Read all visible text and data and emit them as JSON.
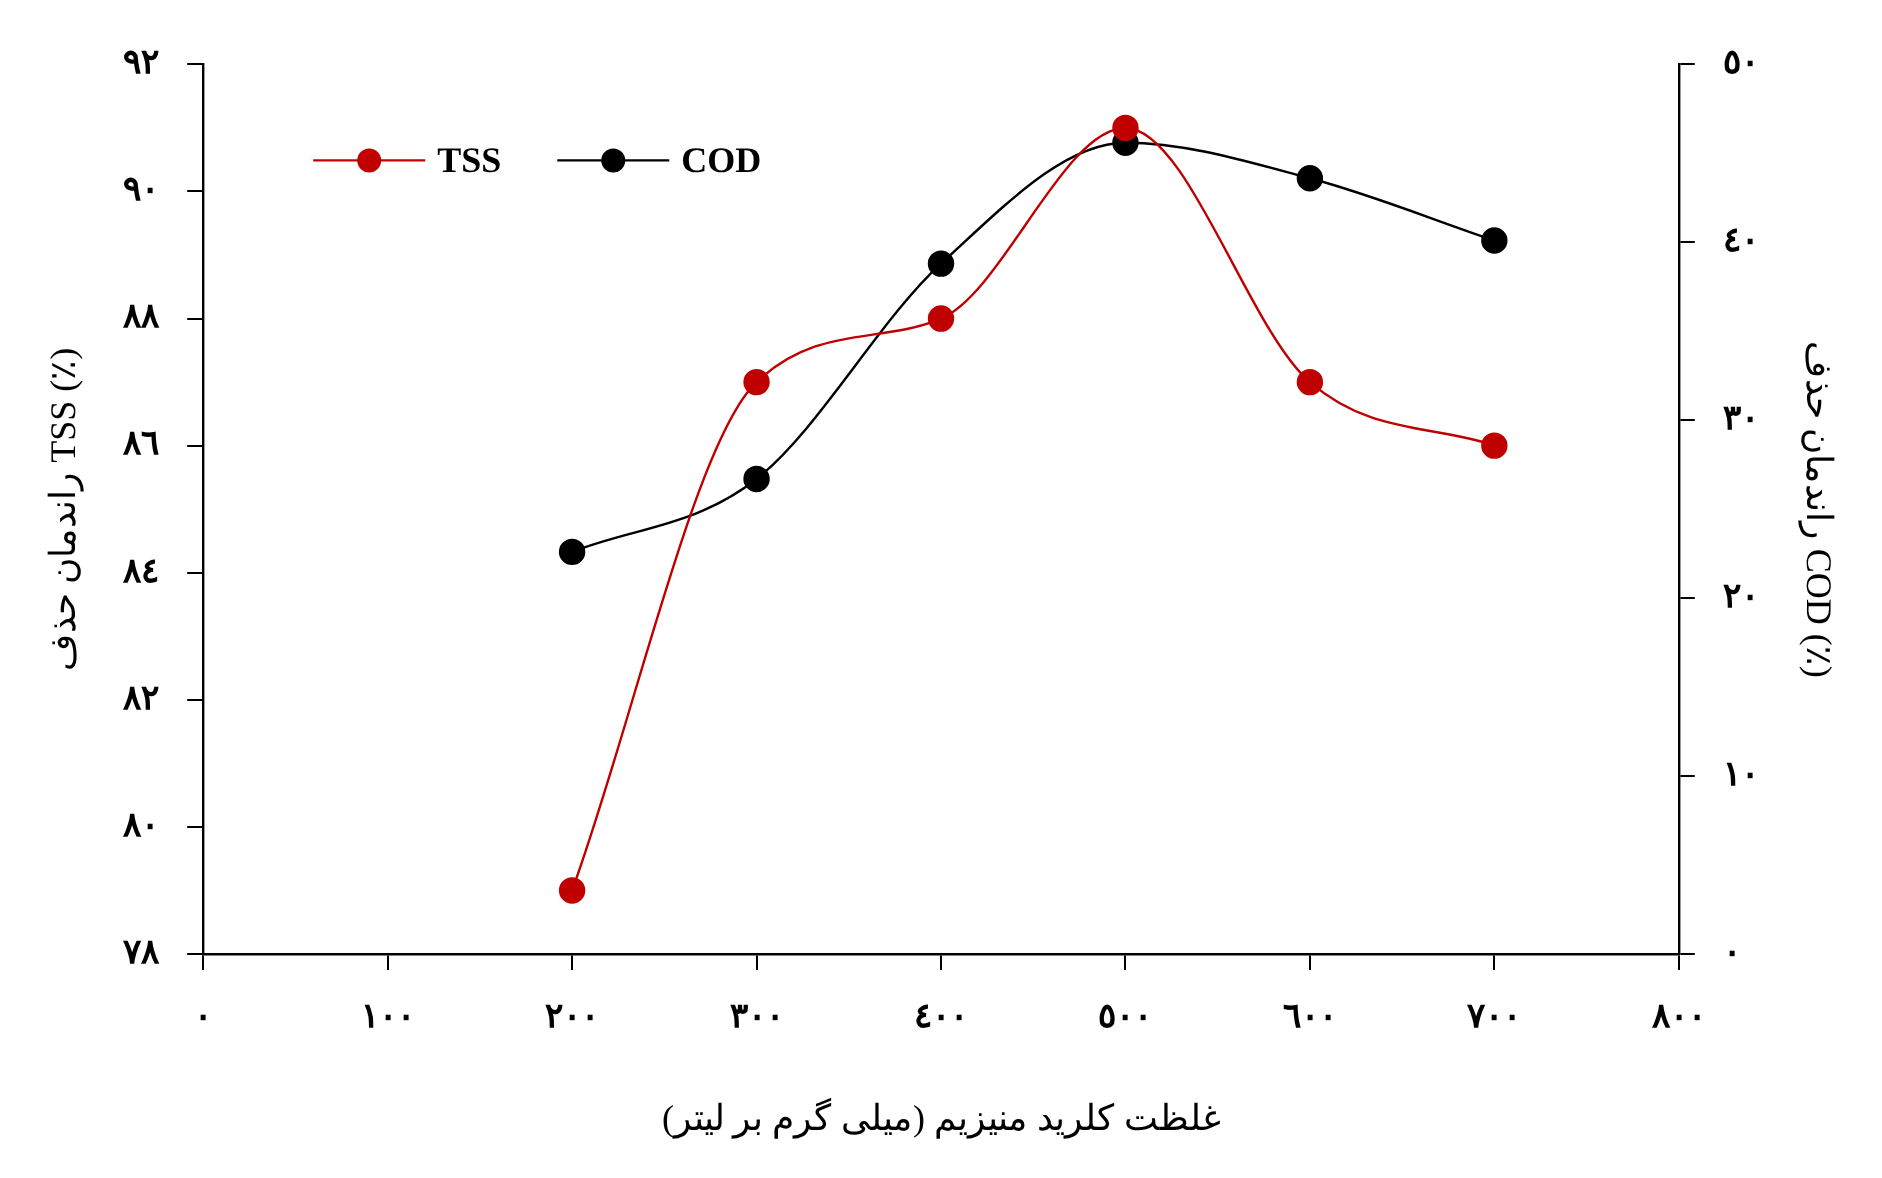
{
  "chart_data": {
    "type": "line",
    "xlabel": "غلظت کلرید منیزیم (میلی گرم بر لیتر)",
    "ylabel": "راندمان حذف TSS (٪)",
    "y2label": "راندمان حذف COD (٪)",
    "x": [
      200,
      300,
      400,
      500,
      600,
      700
    ],
    "series": [
      {
        "name": "TSS",
        "color": "#c00000",
        "values": [
          79,
          87,
          88,
          91,
          87,
          86
        ]
      },
      {
        "name": "COD",
        "color": "#000000",
        "axis": "y2",
        "values": [
          22.6,
          26.7,
          38.8,
          45.6,
          43.6,
          40.1
        ]
      }
    ],
    "xlim": [
      0,
      800
    ],
    "xticks": [
      {
        "value": 0,
        "label": "٠"
      },
      {
        "value": 100,
        "label": "١٠٠"
      },
      {
        "value": 200,
        "label": "٢٠٠"
      },
      {
        "value": 300,
        "label": "٣٠٠"
      },
      {
        "value": 400,
        "label": "٤٠٠"
      },
      {
        "value": 500,
        "label": "٥٠٠"
      },
      {
        "value": 600,
        "label": "٦٠٠"
      },
      {
        "value": 700,
        "label": "٧٠٠"
      },
      {
        "value": 800,
        "label": "٨٠٠"
      }
    ],
    "ylim": [
      78,
      92
    ],
    "yticks": [
      {
        "value": 78,
        "label": "٧٨"
      },
      {
        "value": 80,
        "label": "٨٠"
      },
      {
        "value": 82,
        "label": "٨٢"
      },
      {
        "value": 84,
        "label": "٨٤"
      },
      {
        "value": 86,
        "label": "٨٦"
      },
      {
        "value": 88,
        "label": "٨٨"
      },
      {
        "value": 90,
        "label": "٩٠"
      },
      {
        "value": 92,
        "label": "٩٢"
      }
    ],
    "y2lim": [
      0,
      50
    ],
    "y2ticks": [
      {
        "value": 0,
        "label": "٠"
      },
      {
        "value": 10,
        "label": "١٠"
      },
      {
        "value": 20,
        "label": "٢٠"
      },
      {
        "value": 30,
        "label": "٣٠"
      },
      {
        "value": 40,
        "label": "٤٠"
      },
      {
        "value": 50,
        "label": "٥٠"
      }
    ],
    "grid": false,
    "legend": "top left",
    "marker": "circle",
    "line_style": "solid"
  }
}
